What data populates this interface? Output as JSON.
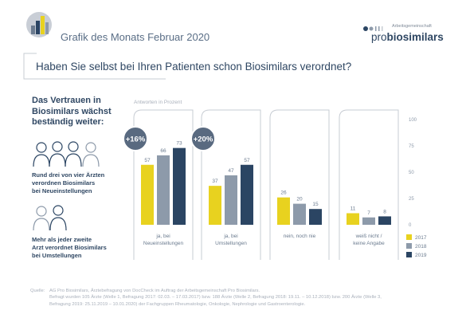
{
  "header": {
    "title": "Grafik des Monats Februar 2020",
    "logo_small": "Arbeitsgemeinschaft",
    "logo_pro": "pro",
    "logo_brand": "biosimilars"
  },
  "question": "Haben Sie selbst bei Ihren Patienten schon Biosimilars verordnet?",
  "left_panel": {
    "heading": [
      "Das Vertrauen in",
      "Biosimilars wächst",
      "beständig weiter:"
    ],
    "caption1": [
      "Rund drei von vier Ärzten",
      "verordnen Biosimilars",
      "bei Neueinstellungen"
    ],
    "caption2": [
      "Mehr als jeder zweite",
      "Arzt verordnet Biosimilars",
      "bei Umstellungen"
    ]
  },
  "footer": {
    "prefix": "Quelle:",
    "lines": [
      "AG Pro Biosimilars, Ärztebefragung von DocCheck im Auftrag der Arbeitsgemeinschaft Pro Biosimilars.",
      "Befragt wurden 105 Ärzte (Welle 1, Befragung 2017: 02.03. – 17.03.2017) bzw. 188 Ärzte (Welle 2, Befragung 2018: 19.11. – 10.12.2018) bzw. 200 Ärzte (Welle 3,",
      "Befragung 2019: 25.11.2019 – 10.01.2020) der Fachgruppen Rheumatologie, Onkologie, Nephrologie und Gastroenterologie."
    ]
  },
  "colors": {
    "yellow": "#e8d21f",
    "grey": "#8d9aaa",
    "navy": "#2b4563",
    "text": "#2f4763",
    "panel_border": "#c7ccd3",
    "growth_circle": "#596a80"
  },
  "icons": [
    "chart-logo-icon",
    "doctors-group-icon",
    "doctors-pair-icon"
  ],
  "chart_data": {
    "type": "bar",
    "title": "",
    "subtitle": "Antworten in Prozent",
    "categories": [
      [
        "ja, bei",
        "Neueinstellungen"
      ],
      [
        "ja, bei",
        "Umstellungen"
      ],
      [
        "nein, noch nie"
      ],
      [
        "weiß nicht /",
        "keine Angabe"
      ]
    ],
    "series": [
      {
        "name": "2017",
        "values": [
          57,
          37,
          26,
          11
        ]
      },
      {
        "name": "2018",
        "values": [
          66,
          47,
          20,
          7
        ]
      },
      {
        "name": "2019",
        "values": [
          73,
          57,
          15,
          8
        ]
      }
    ],
    "annotations": [
      {
        "category": 0,
        "text": "+16%"
      },
      {
        "category": 1,
        "text": "+20%"
      }
    ],
    "ylim": [
      0,
      100
    ],
    "yticks": [
      0,
      25,
      50,
      75,
      100
    ],
    "legend": "bottom-right",
    "grid": false
  }
}
